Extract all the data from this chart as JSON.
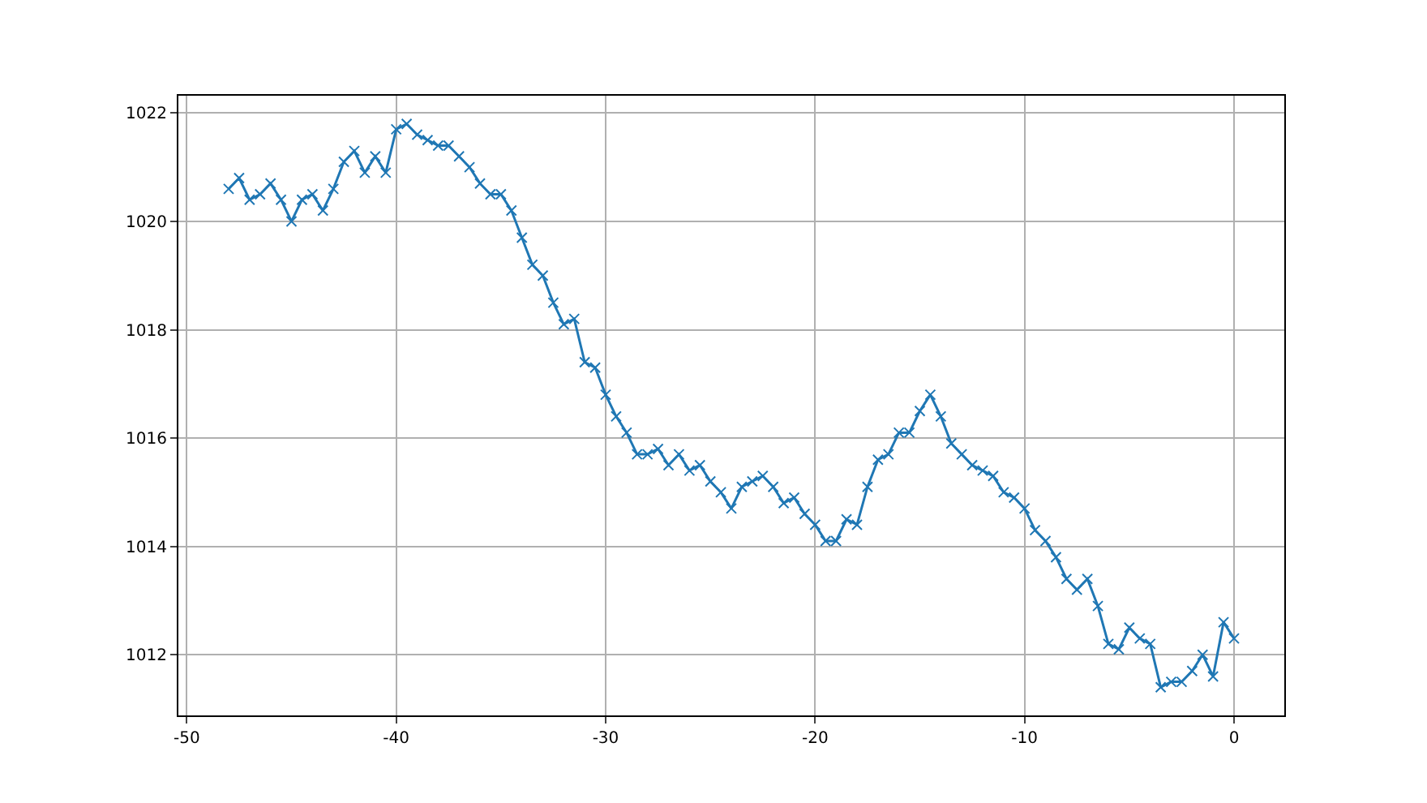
{
  "chart_data": {
    "type": "line",
    "x": [
      -48,
      -47.5,
      -47,
      -46.5,
      -46,
      -45.5,
      -45,
      -44.5,
      -44,
      -43.5,
      -43,
      -42.5,
      -42,
      -41.5,
      -41,
      -40.5,
      -40,
      -39.5,
      -39,
      -38.5,
      -38,
      -37.5,
      -37,
      -36.5,
      -36,
      -35.5,
      -35,
      -34.5,
      -34,
      -33.5,
      -33,
      -32.5,
      -32,
      -31.5,
      -31,
      -30.5,
      -30,
      -29.5,
      -29,
      -28.5,
      -28,
      -27.5,
      -27,
      -26.5,
      -26,
      -25.5,
      -25,
      -24.5,
      -24,
      -23.5,
      -23,
      -22.5,
      -22,
      -21.5,
      -21,
      -20.5,
      -20,
      -19.5,
      -19,
      -18.5,
      -18,
      -17.5,
      -17,
      -16.5,
      -16,
      -15.5,
      -15,
      -14.5,
      -14,
      -13.5,
      -13,
      -12.5,
      -12,
      -11.5,
      -11,
      -10.5,
      -10,
      -9.5,
      -9,
      -8.5,
      -8,
      -7.5,
      -7,
      -6.5,
      -6,
      -5.5,
      -5,
      -4.5,
      -4,
      -3.5,
      -3,
      -2.5,
      -2,
      -1.5,
      -1,
      -0.5,
      0
    ],
    "series": [
      {
        "color": "#1f77b4",
        "values": [
          1020.6,
          1020.8,
          1020.4,
          1020.5,
          1020.7,
          1020.4,
          1020.0,
          1020.4,
          1020.5,
          1020.2,
          1020.6,
          1021.1,
          1021.3,
          1020.9,
          1021.2,
          1020.9,
          1021.7,
          1021.8,
          1021.6,
          1021.5,
          1021.4,
          1021.4,
          1021.2,
          1021.0,
          1020.7,
          1020.5,
          1020.5,
          1020.2,
          1019.7,
          1019.2,
          1019.0,
          1018.5,
          1018.1,
          1018.2,
          1017.4,
          1017.3,
          1016.8,
          1016.4,
          1016.1,
          1015.7,
          1015.7,
          1015.8,
          1015.5,
          1015.7,
          1015.4,
          1015.5,
          1015.2,
          1015.0,
          1014.7,
          1015.1,
          1015.2,
          1015.3,
          1015.1,
          1014.8,
          1014.9,
          1014.6,
          1014.4,
          1014.1,
          1014.1,
          1014.5,
          1014.4,
          1015.1,
          1015.6,
          1015.7,
          1016.1,
          1016.1,
          1016.5,
          1016.8,
          1016.4,
          1015.9,
          1015.7,
          1015.5,
          1015.4,
          1015.3,
          1015.0,
          1014.9,
          1014.7,
          1014.3,
          1014.1,
          1013.8,
          1013.4,
          1013.2,
          1013.4,
          1012.9,
          1012.2,
          1012.1,
          1012.5,
          1012.3,
          1012.2,
          1011.4,
          1011.5,
          1011.5,
          1011.7,
          1012.0,
          1011.6,
          1012.6,
          1012.3
        ]
      }
    ],
    "xlim": [
      -50.4,
      2.4
    ],
    "ylim": [
      1010.88,
      1022.32
    ],
    "xticks": [
      -50,
      -40,
      -30,
      -20,
      -10,
      0
    ],
    "yticks": [
      1012,
      1014,
      1016,
      1018,
      1020,
      1022
    ],
    "grid": true,
    "marker": "cross",
    "line_style": "solid"
  }
}
